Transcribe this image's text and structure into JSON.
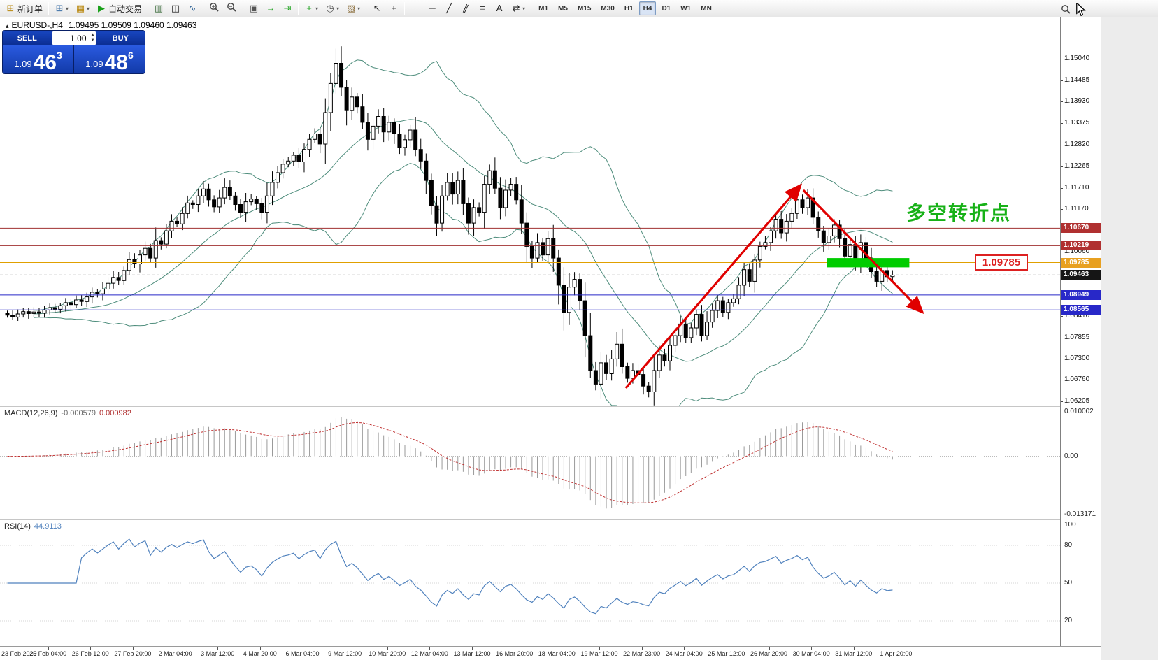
{
  "colors": {
    "arrow": "#e00000",
    "bollinger": "#4e8d7c",
    "candle_up": "#ffffff",
    "candle_down": "#000000",
    "macd_hist": "#9a9a9a",
    "macd_signal": "#c03333",
    "rsi_line": "#4f81bd",
    "highlight_green": "#00cc00",
    "annotation_green": "#17b117",
    "callout_red": "#dd2020"
  },
  "toolbar": {
    "groups": [
      {
        "name": "orders",
        "items": [
          {
            "name": "new-order-button",
            "label": "新订单",
            "glyph": "⊞",
            "glyph_color": "#b8860b"
          }
        ]
      },
      {
        "name": "windows",
        "items": [
          {
            "name": "new-chart-button",
            "glyph": "⊞",
            "glyph_color": "#3a6ea5",
            "dropdown": true
          },
          {
            "name": "profiles-button",
            "glyph": "▦",
            "glyph_color": "#b8860b",
            "dropdown": true
          },
          {
            "name": "auto-trading-button",
            "label": "自动交易",
            "glyph": "▶",
            "glyph_color": "#18a018"
          }
        ]
      },
      {
        "name": "chart-types",
        "items": [
          {
            "name": "bar-chart-button",
            "glyph": "▥",
            "glyph_color": "#356635"
          },
          {
            "name": "candlestick-button",
            "glyph": "◫",
            "glyph_color": "#222222"
          },
          {
            "name": "line-chart-button",
            "glyph": "∿",
            "glyph_color": "#336699"
          }
        ]
      },
      {
        "name": "zoom",
        "items": [
          {
            "name": "zoom-in-button",
            "svg": "zoomin"
          },
          {
            "name": "zoom-out-button",
            "svg": "zoomout"
          }
        ]
      },
      {
        "name": "layout",
        "items": [
          {
            "name": "tile-windows-button",
            "glyph": "▣",
            "glyph_color": "#555555"
          },
          {
            "name": "auto-scroll-button",
            "glyph": "→",
            "glyph_color": "#18a018"
          },
          {
            "name": "chart-shift-button",
            "glyph": "⇥",
            "glyph_color": "#18a018"
          }
        ]
      },
      {
        "name": "tools",
        "items": [
          {
            "name": "indicators-button",
            "glyph": "+",
            "glyph_color": "#18a018",
            "dropdown": true
          },
          {
            "name": "periods-button",
            "glyph": "◷",
            "glyph_color": "#555555",
            "dropdown": true
          },
          {
            "name": "templates-button",
            "glyph": "▨",
            "glyph_color": "#8a6d3b",
            "dropdown": true
          }
        ]
      },
      {
        "name": "cursor-tools",
        "items": [
          {
            "name": "cursor-button",
            "glyph": "↖",
            "glyph_color": "#222222"
          },
          {
            "name": "crosshair-button",
            "glyph": "+",
            "glyph_color": "#222222"
          }
        ]
      },
      {
        "name": "draw-tools",
        "items": [
          {
            "name": "vertical-line-button",
            "glyph": "│",
            "glyph_color": "#222222"
          },
          {
            "name": "horizontal-line-button",
            "glyph": "─",
            "glyph_color": "#222222"
          },
          {
            "name": "trendline-button",
            "glyph": "╱",
            "glyph_color": "#222222"
          },
          {
            "name": "channel-button",
            "glyph": "∥",
            "glyph_color": "#222222",
            "tilt": true
          },
          {
            "name": "fibonacci-button",
            "glyph": "≡",
            "glyph_color": "#222222"
          },
          {
            "name": "text-button",
            "glyph": "A",
            "glyph_color": "#222222"
          },
          {
            "name": "arrows-button",
            "glyph": "⇄",
            "glyph_color": "#222222",
            "dropdown": true
          }
        ]
      }
    ],
    "timeframes": [
      {
        "label": "M1"
      },
      {
        "label": "M5"
      },
      {
        "label": "M15"
      },
      {
        "label": "M30"
      },
      {
        "label": "H1"
      },
      {
        "label": "H4",
        "active": true
      },
      {
        "label": "D1"
      },
      {
        "label": "W1"
      },
      {
        "label": "MN"
      }
    ]
  },
  "chart": {
    "symbol_icon": "▴",
    "title_symbol": "EURUSD-,H4",
    "title_ohlc": "1.09495 1.09509 1.09460 1.09463"
  },
  "trade_panel": {
    "sell_label": "SELL",
    "buy_label": "BUY",
    "volume": "1.00",
    "bid": {
      "prefix": "1.09",
      "big": "46",
      "sup": "3"
    },
    "ask": {
      "prefix": "1.09",
      "big": "48",
      "sup": "6"
    }
  },
  "annotations": {
    "turning_point": "多空转折点",
    "price_callout": "1.09785"
  },
  "price_axis": {
    "labels": [
      "1.15040",
      "1.14485",
      "1.13930",
      "1.13375",
      "1.12820",
      "1.12265",
      "1.11710",
      "1.11170",
      "1.10060",
      "1.08410",
      "1.07855",
      "1.07300",
      "1.06760",
      "1.06205"
    ]
  },
  "time_axis": {
    "labels": [
      "23 Feb 2020",
      "25 Feb 04:00",
      "26 Feb 12:00",
      "27 Feb 20:00",
      "2 Mar 04:00",
      "3 Mar 12:00",
      "4 Mar 20:00",
      "6 Mar 04:00",
      "9 Mar 12:00",
      "10 Mar 20:00",
      "12 Mar 04:00",
      "13 Mar 12:00",
      "16 Mar 20:00",
      "18 Mar 04:00",
      "19 Mar 12:00",
      "22 Mar 23:00",
      "24 Mar 04:00",
      "25 Mar 12:00",
      "26 Mar 20:00",
      "30 Mar 04:00",
      "31 Mar 12:00",
      "1 Apr 20:00"
    ]
  },
  "indicators": {
    "macd": {
      "name": "MACD(12,26,9)",
      "fast": 12,
      "slow": 26,
      "signal": 9,
      "value_main": "-0.000579",
      "value_signal": "0.000982",
      "scale_top": "0.010002",
      "scale_zero": "0.00",
      "scale_bottom": "-0.013171"
    },
    "rsi": {
      "name": "RSI(14)",
      "period": 14,
      "value": "44.9113",
      "scale_labels": [
        100,
        80,
        50,
        20
      ],
      "levels": [
        80,
        50,
        20
      ]
    }
  },
  "chart_data": {
    "type": "candlestick",
    "symbol": "EURUSD",
    "period": "H4",
    "price_range": {
      "top": 1.161,
      "bottom": 1.061
    },
    "overlays": {
      "bollinger": {
        "period": 20,
        "deviation": 2
      }
    },
    "closes": [
      1.0843,
      1.0838,
      1.0846,
      1.0852,
      1.0847,
      1.0851,
      1.0848,
      1.0856,
      1.0862,
      1.0858,
      1.0867,
      1.0875,
      1.087,
      1.0882,
      1.0878,
      1.089,
      1.0902,
      1.0898,
      1.091,
      1.0925,
      1.094,
      1.0932,
      1.0958,
      1.0986,
      1.0975,
      1.0998,
      1.1015,
      1.099,
      1.1035,
      1.1026,
      1.106,
      1.1085,
      1.1078,
      1.1105,
      1.1132,
      1.1128,
      1.115,
      1.1168,
      1.114,
      1.1122,
      1.1145,
      1.1172,
      1.115,
      1.1128,
      1.1108,
      1.1135,
      1.1142,
      1.113,
      1.1108,
      1.115,
      1.1185,
      1.121,
      1.1232,
      1.124,
      1.1255,
      1.1238,
      1.127,
      1.1296,
      1.131,
      1.1284,
      1.1365,
      1.144,
      1.1492,
      1.143,
      1.137,
      1.1405,
      1.138,
      1.134,
      1.1296,
      1.133,
      1.1355,
      1.1315,
      1.134,
      1.131,
      1.1275,
      1.1295,
      1.132,
      1.127,
      1.124,
      1.119,
      1.1125,
      1.108,
      1.115,
      1.1185,
      1.1155,
      1.119,
      1.113,
      1.108,
      1.112,
      1.1108,
      1.118,
      1.1215,
      1.117,
      1.112,
      1.1165,
      1.118,
      1.114,
      1.108,
      1.102,
      1.099,
      1.103,
      1.0998,
      1.104,
      1.099,
      1.092,
      1.085,
      1.0915,
      1.0935,
      1.088,
      1.079,
      1.07,
      1.0665,
      1.072,
      1.0692,
      1.073,
      1.0768,
      1.071,
      1.068,
      1.07,
      1.069,
      1.066,
      1.0645,
      1.07,
      1.074,
      1.0725,
      1.0765,
      1.079,
      1.082,
      1.0785,
      1.081,
      1.0845,
      1.079,
      1.0825,
      1.0855,
      1.088,
      1.085,
      1.0875,
      1.0885,
      1.092,
      1.096,
      1.093,
      1.0985,
      1.102,
      1.103,
      1.106,
      1.109,
      1.1055,
      1.1085,
      1.1105,
      1.114,
      1.112,
      1.1145,
      1.1095,
      1.106,
      1.103,
      1.1047,
      1.1075,
      1.104,
      1.0995,
      1.1025,
      1.0985,
      1.103,
      1.099,
      1.0955,
      1.093,
      1.0958,
      1.0942,
      1.0946
    ],
    "horizontal_lines": [
      {
        "price": 1.1067,
        "label": "1.10670",
        "line": "#a03030",
        "tag": "#b03030"
      },
      {
        "price": 1.10219,
        "label": "1.10219",
        "line": "#a03030",
        "tag": "#b03030"
      },
      {
        "price": 1.09785,
        "label": "1.09785",
        "line": "#e0a000",
        "tag": "#e8a020"
      },
      {
        "price": 1.09463,
        "label": "1.09463",
        "line": "#555555",
        "tag": "#151515",
        "dashed": true,
        "current": true
      },
      {
        "price": 1.08949,
        "label": "1.08949",
        "line": "#2828c8",
        "tag": "#2828c8"
      },
      {
        "price": 1.08565,
        "label": "1.08565",
        "line": "#2828c8",
        "tag": "#2828c8"
      }
    ],
    "trend_arrows": [
      {
        "from_index": 117,
        "from_price": 1.0655,
        "to_index": 150,
        "to_price": 1.1178
      },
      {
        "from_index": 150.5,
        "from_price": 1.1165,
        "to_index": 173,
        "to_price": 1.085
      }
    ],
    "highlight_rect": {
      "from_index": 155,
      "to_index": 170.5,
      "price_top": 1.099,
      "price_bottom": 1.0966
    }
  }
}
